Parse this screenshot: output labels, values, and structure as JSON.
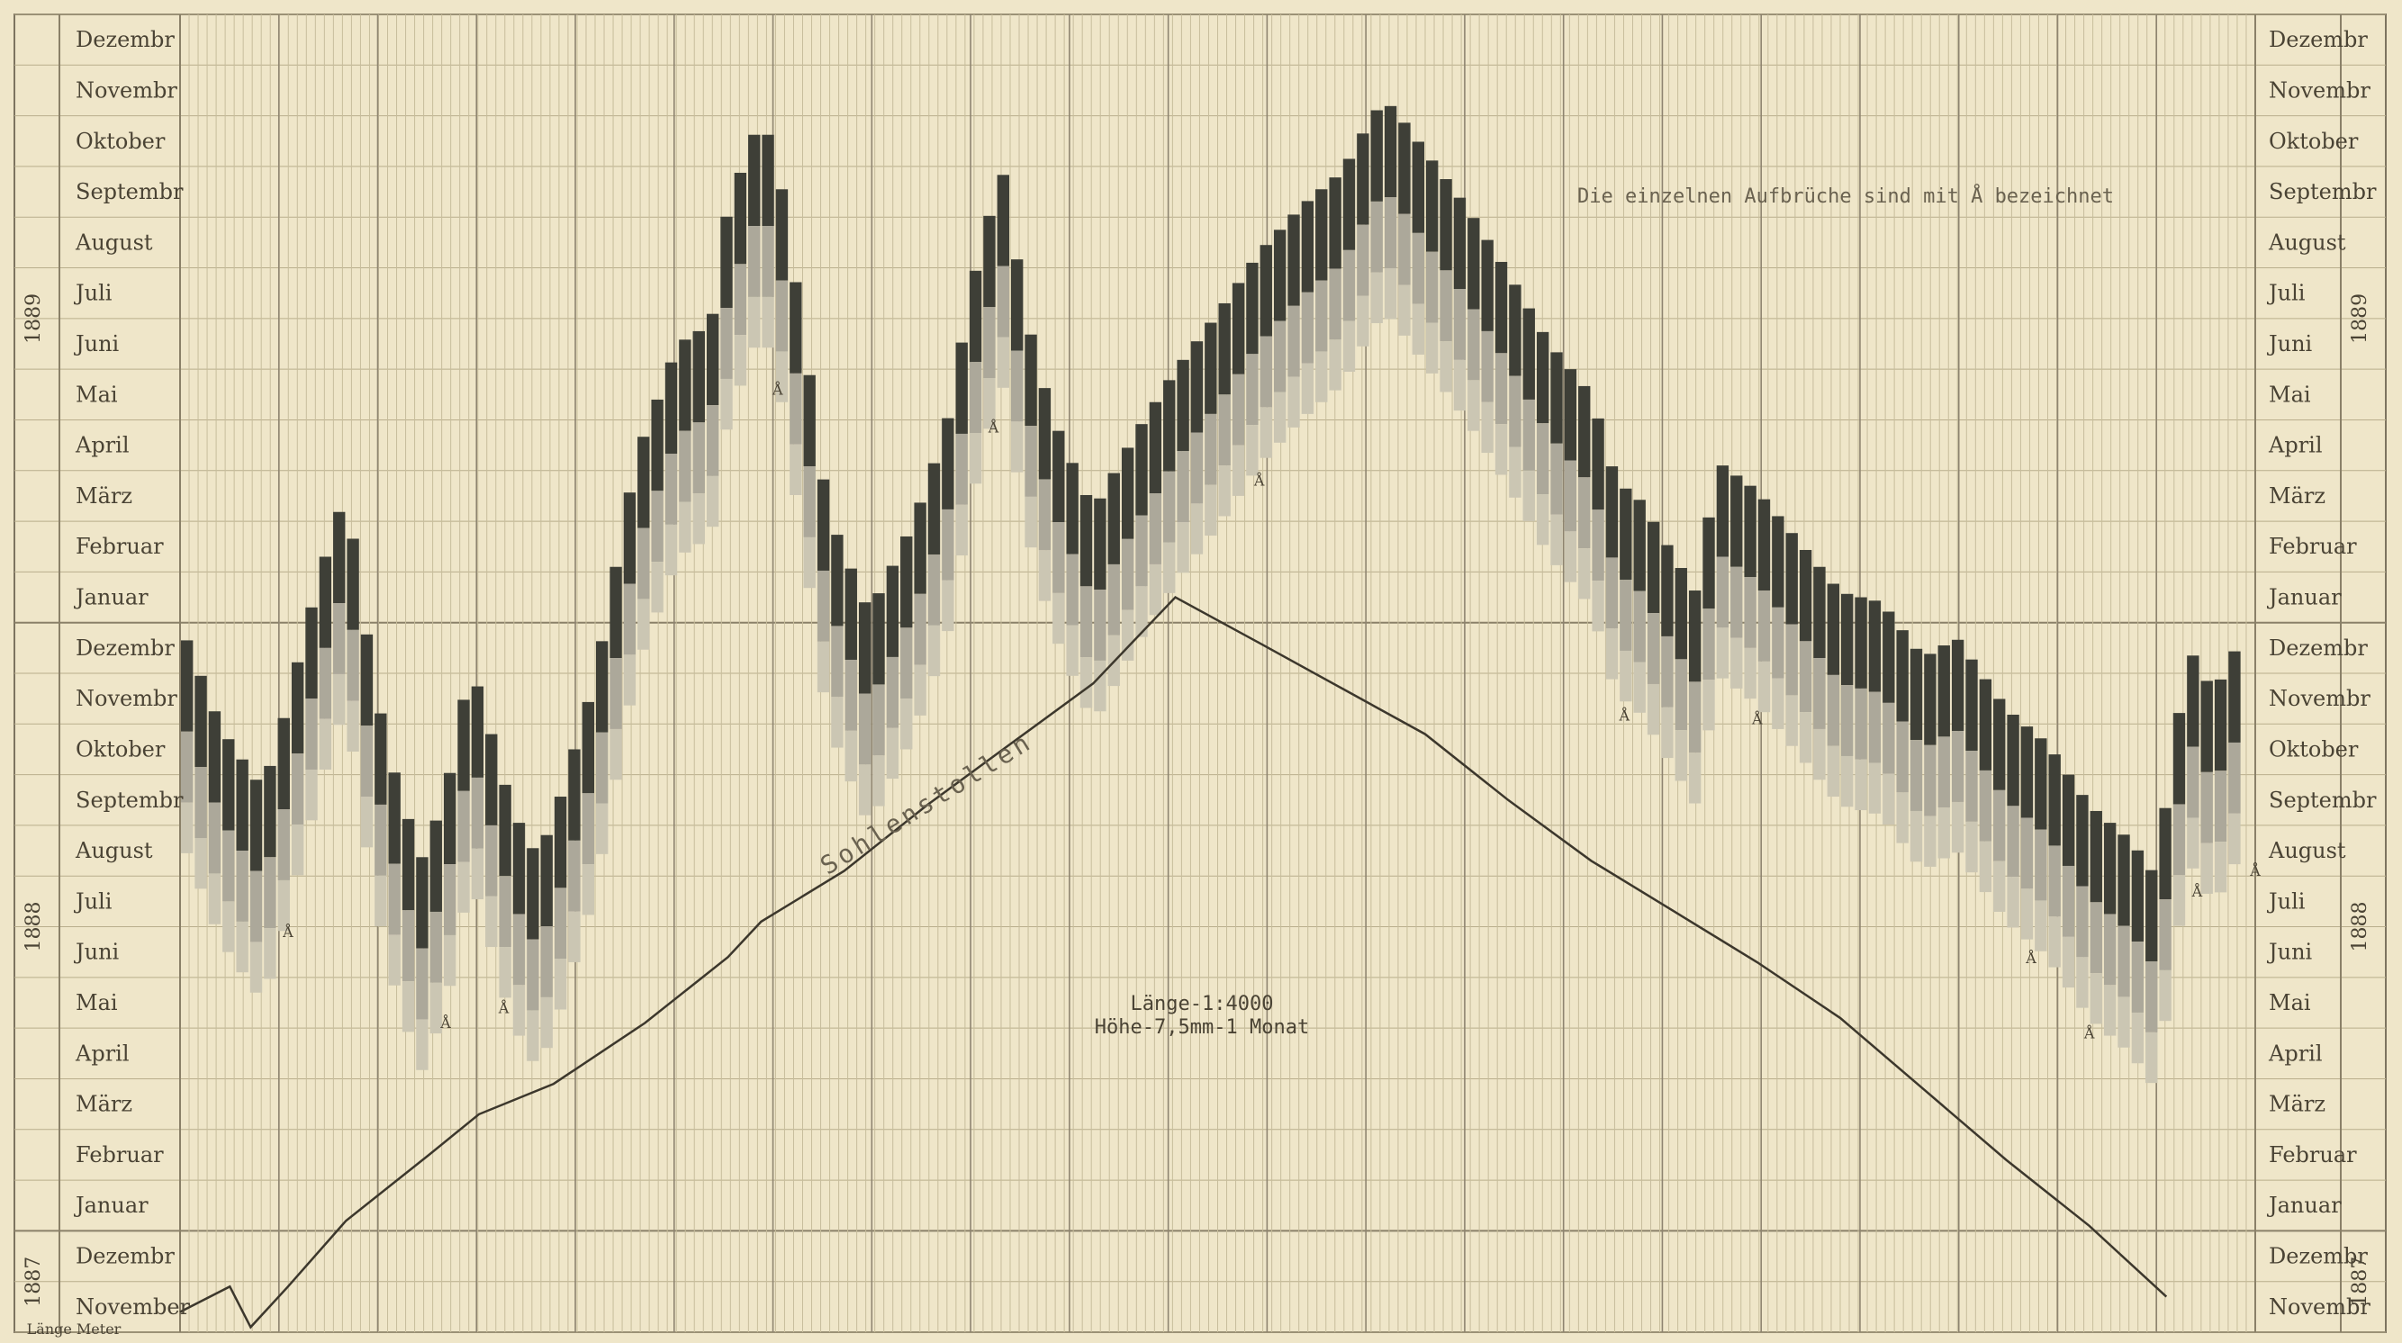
{
  "chart_data": {
    "type": "bar",
    "y_axis": {
      "months_bottom_to_top": [
        "Januar",
        "Februar",
        "März",
        "April",
        "Mai",
        "Juni",
        "Juli",
        "August",
        "Septembr",
        "Oktober",
        "Novembr",
        "Dezembr"
      ],
      "left_labels": [
        {
          "year": "1887",
          "month": "November"
        },
        {
          "year": "1887",
          "month": "Dezembr"
        },
        {
          "year": "1888",
          "month": "Januar"
        },
        {
          "year": "1888",
          "month": "Februar"
        },
        {
          "year": "1888",
          "month": "März"
        },
        {
          "year": "1888",
          "month": "April"
        },
        {
          "year": "1888",
          "month": "Mai"
        },
        {
          "year": "1888",
          "month": "Juni"
        },
        {
          "year": "1888",
          "month": "Juli"
        },
        {
          "year": "1888",
          "month": "August"
        },
        {
          "year": "1888",
          "month": "Septembr"
        },
        {
          "year": "1888",
          "month": "Oktober"
        },
        {
          "year": "1888",
          "month": "Novembr"
        },
        {
          "year": "1888",
          "month": "Dezembr"
        },
        {
          "year": "1889",
          "month": "Januar"
        },
        {
          "year": "1889",
          "month": "Februar"
        },
        {
          "year": "1889",
          "month": "März"
        },
        {
          "year": "1889",
          "month": "April"
        },
        {
          "year": "1889",
          "month": "Mai"
        },
        {
          "year": "1889",
          "month": "Juni"
        },
        {
          "year": "1889",
          "month": "Juli"
        },
        {
          "year": "1889",
          "month": "August"
        },
        {
          "year": "1889",
          "month": "Septembr"
        },
        {
          "year": "1889",
          "month": "Oktober"
        },
        {
          "year": "1889",
          "month": "Novembr"
        },
        {
          "year": "1889",
          "month": "Dezembr"
        }
      ],
      "right_labels": [
        "Novembr",
        "Dezembr",
        "Januar",
        "Februar",
        "März",
        "April",
        "Mai",
        "Juni",
        "Juli",
        "August",
        "Septembr",
        "Oktober",
        "Novembr",
        "Dezembr",
        "Januar",
        "Februar",
        "März",
        "April",
        "Mai",
        "Juni",
        "Juli",
        "August",
        "Septembr",
        "Oktober",
        "Novembr",
        "Dezembr"
      ],
      "years": [
        "1887",
        "1888",
        "1889"
      ]
    },
    "annotations": {
      "note": "Die einzelnen Aufbrüche sind mit Å bezeichnet",
      "stollen": "Sohlenstollen",
      "scale_line1": "Länge-1:4000",
      "scale_line2": "Höhe-7,5mm-1 Monat",
      "length_label": "Länge Meter",
      "marker_glyph": "Å"
    },
    "colors": {
      "dark": "#3e3f37",
      "mid": "#aca89a",
      "light": "#cbc6b3",
      "paper": "#efe6c9"
    },
    "axis_range_months": [
      0,
      26
    ],
    "stollen_line": [
      [
        0.0,
        0.4
      ],
      [
        0.6,
        0.9
      ],
      [
        0.85,
        0.1
      ],
      [
        1.3,
        0.9
      ],
      [
        2.0,
        2.2
      ],
      [
        3.0,
        3.5
      ],
      [
        3.6,
        4.3
      ],
      [
        4.5,
        4.9
      ],
      [
        5.6,
        6.1
      ],
      [
        6.6,
        7.4
      ],
      [
        7.0,
        8.1
      ],
      [
        8.0,
        9.1
      ],
      [
        9.0,
        10.4
      ],
      [
        10.0,
        11.6
      ],
      [
        11.0,
        12.8
      ],
      [
        11.99,
        14.5
      ],
      [
        13.0,
        13.6
      ],
      [
        14.0,
        12.7
      ],
      [
        15.0,
        11.8
      ],
      [
        16.0,
        10.5
      ],
      [
        17.0,
        9.3
      ],
      [
        18.0,
        8.3
      ],
      [
        19.0,
        7.3
      ],
      [
        20.0,
        6.2
      ],
      [
        21.0,
        4.8
      ],
      [
        22.0,
        3.4
      ],
      [
        23.0,
        2.1
      ],
      [
        23.93,
        0.7
      ]
    ],
    "peak_envelope_dark_top": [
      [
        0.0,
        14.0
      ],
      [
        0.5,
        11.9
      ],
      [
        1.0,
        10.7
      ],
      [
        1.3,
        12.4
      ],
      [
        1.5,
        13.8
      ],
      [
        1.8,
        15.6
      ],
      [
        2.0,
        16.6
      ],
      [
        2.3,
        13.2
      ],
      [
        2.5,
        11.5
      ],
      [
        2.9,
        9.3
      ],
      [
        3.2,
        10.6
      ],
      [
        3.5,
        13.2
      ],
      [
        3.7,
        12.1
      ],
      [
        4.0,
        10.3
      ],
      [
        4.3,
        9.4
      ],
      [
        4.5,
        10.1
      ],
      [
        5.0,
        12.9
      ],
      [
        5.5,
        17.3
      ],
      [
        6.0,
        19.5
      ],
      [
        6.4,
        19.9
      ],
      [
        6.6,
        22.2
      ],
      [
        7.0,
        24.0
      ],
      [
        7.2,
        23.1
      ],
      [
        7.6,
        18.7
      ],
      [
        7.8,
        16.2
      ],
      [
        8.3,
        14.2
      ],
      [
        8.7,
        15.5
      ],
      [
        9.0,
        16.7
      ],
      [
        9.3,
        18.3
      ],
      [
        9.5,
        20.4
      ],
      [
        9.9,
        23.0
      ],
      [
        10.2,
        20.0
      ],
      [
        10.5,
        18.1
      ],
      [
        11.0,
        16.2
      ],
      [
        11.5,
        17.7
      ],
      [
        12.0,
        19.0
      ],
      [
        12.5,
        20.1
      ],
      [
        13.0,
        21.3
      ],
      [
        13.5,
        22.2
      ],
      [
        14.0,
        22.9
      ],
      [
        14.4,
        24.1
      ],
      [
        14.6,
        24.2
      ],
      [
        15.0,
        23.3
      ],
      [
        15.5,
        22.2
      ],
      [
        16.0,
        20.9
      ],
      [
        16.5,
        19.5
      ],
      [
        17.0,
        18.5
      ],
      [
        17.3,
        16.8
      ],
      [
        17.6,
        16.4
      ],
      [
        18.0,
        15.3
      ],
      [
        18.3,
        14.5
      ],
      [
        18.5,
        17.2
      ],
      [
        19.0,
        16.6
      ],
      [
        19.5,
        15.6
      ],
      [
        20.0,
        14.6
      ],
      [
        20.5,
        14.4
      ],
      [
        21.0,
        13.3
      ],
      [
        21.4,
        13.7
      ],
      [
        22.0,
        12.3
      ],
      [
        22.5,
        11.6
      ],
      [
        23.0,
        10.4
      ],
      [
        23.5,
        9.7
      ],
      [
        23.8,
        9.0
      ],
      [
        24.0,
        11.3
      ],
      [
        24.2,
        13.5
      ],
      [
        24.5,
        12.6
      ],
      [
        24.8,
        13.6
      ]
    ]
  }
}
